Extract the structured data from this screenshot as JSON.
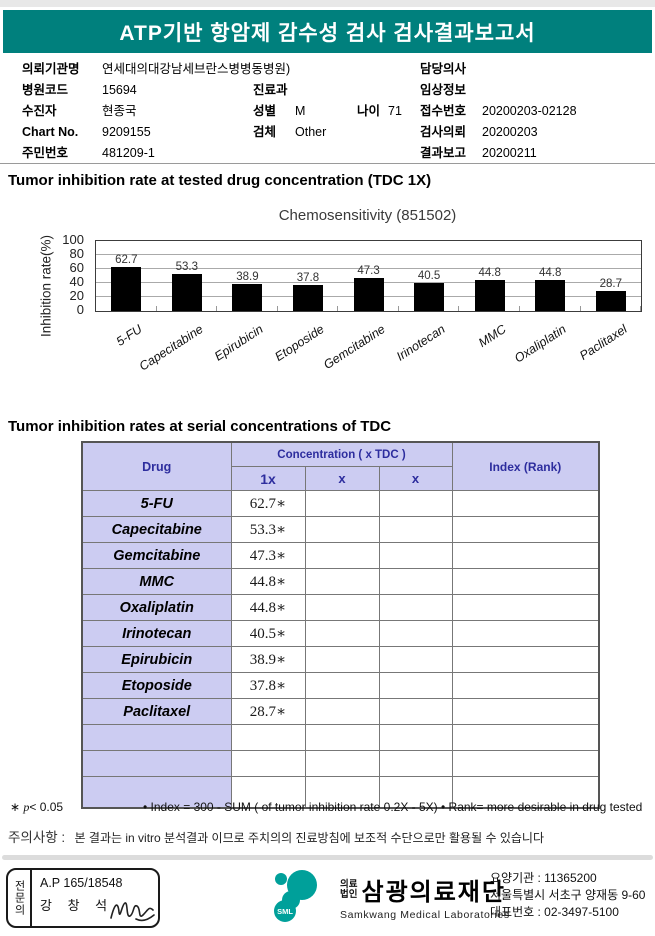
{
  "banner": {
    "title": "ATP기반 항암제 감수성 검사 검사결과보고서",
    "color": "#00807d"
  },
  "patient_info": {
    "left": [
      {
        "label": "의뢰기관명",
        "value": "연세대의대강남세브란스병병동병원)"
      },
      {
        "label": "병원코드",
        "value": "15694"
      },
      {
        "label": "수진자",
        "value": "현종국"
      },
      {
        "label": "Chart No.",
        "value": "9209155"
      },
      {
        "label": "주민번호",
        "value": "481209-1"
      }
    ],
    "middle": [
      {
        "label": "진료과",
        "value": ""
      },
      {
        "label": "성별",
        "value": "M",
        "label2": "나이",
        "value2": "71"
      },
      {
        "label": "검체",
        "value": "Other"
      }
    ],
    "right": [
      {
        "label": "담당의사",
        "value": ""
      },
      {
        "label": "임상정보",
        "value": ""
      },
      {
        "label": "접수번호",
        "value": "20200203-02128"
      },
      {
        "label": "검사의뢰",
        "value": "20200203"
      },
      {
        "label": "결과보고",
        "value": "20200211"
      }
    ]
  },
  "section1_title": "Tumor inhibition rate at tested drug concentration (TDC 1X)",
  "chart_data": {
    "type": "bar",
    "title": "Chemosensitivity (851502)",
    "categories": [
      "5-FU",
      "Capecitabine",
      "Epirubicin",
      "Etoposide",
      "Gemcitabine",
      "Irinotecan",
      "MMC",
      "Oxaliplatin",
      "Paclitaxel"
    ],
    "values": [
      62.7,
      53.3,
      38.9,
      37.8,
      47.3,
      40.5,
      44.8,
      44.8,
      28.7
    ],
    "ylabel": "Inhibition rate(%)",
    "yticks": [
      0,
      20,
      40,
      60,
      80,
      100
    ],
    "ylim": [
      0,
      100
    ],
    "bar_color": "#000000",
    "grid": true,
    "legend": "none"
  },
  "section2_title": "Tumor inhibition rates at serial concentrations of TDC",
  "table": {
    "col_drug": "Drug",
    "col_concentration": "Concentration ( x TDC )",
    "col_index": "Index (Rank)",
    "sub_cols": [
      "1x",
      "x",
      "x"
    ],
    "value_suffix": "∗",
    "rows": [
      {
        "drug": "5-FU",
        "c1": "62.7"
      },
      {
        "drug": "Capecitabine",
        "c1": "53.3"
      },
      {
        "drug": "Gemcitabine",
        "c1": "47.3"
      },
      {
        "drug": "MMC",
        "c1": "44.8"
      },
      {
        "drug": "Oxaliplatin",
        "c1": "44.8"
      },
      {
        "drug": "Irinotecan",
        "c1": "40.5"
      },
      {
        "drug": "Epirubicin",
        "c1": "38.9"
      },
      {
        "drug": "Etoposide",
        "c1": "37.8"
      },
      {
        "drug": "Paclitaxel",
        "c1": "28.7"
      }
    ],
    "empty_row_count": 3,
    "header_bg": "#ccccf2",
    "header_text_color": "#2d2d9e"
  },
  "notes": {
    "pvalue_marker": "∗",
    "pvalue": "p< 0.05",
    "index_note": "• Index = 300 - SUM ( of tumor inhibition rate 0.2X  -  5X)",
    "rank_note": "• Rank= more desirable in drug tested"
  },
  "caution": {
    "label": "주의사항 :",
    "text": "본 결과는 in vitro 분석결과 이므로 주치의의 진료방침에 보조적 수단으로만 활용될 수 있습니다"
  },
  "footer": {
    "stamp": {
      "side_label": "전문의",
      "license": "A.P 165/18548",
      "doctor_name": "강 창 석"
    },
    "logo_text": "SML",
    "corp_type": "의료\n법인",
    "corp_name": "삼광의료재단",
    "corp_name_en": "Samkwang Medical Laboratories",
    "org_code": "요양기관 : 11365200",
    "org_address": "서울특별시 서초구 양재동 9-60",
    "org_phone": "대표번호 : 02-3497-5100",
    "logo_color": "#00a09a"
  }
}
